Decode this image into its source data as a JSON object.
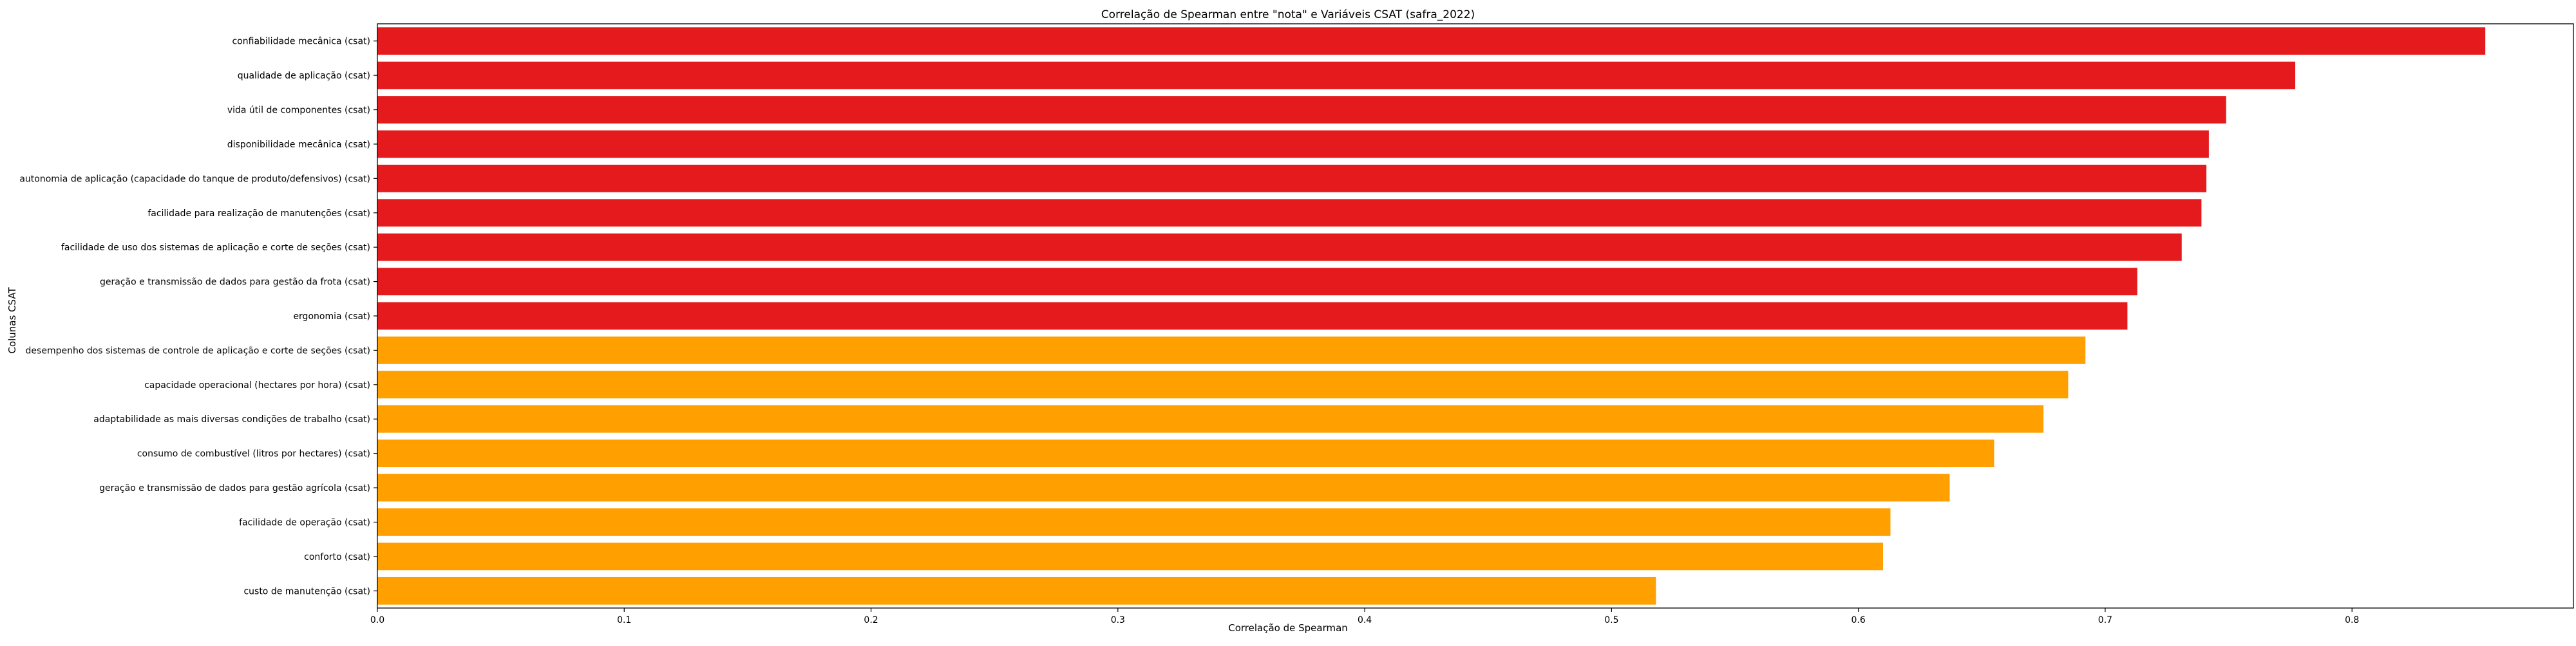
{
  "chart_data": {
    "type": "bar",
    "orientation": "horizontal",
    "title": "Correlação de Spearman entre \"nota\" e Variáveis CSAT (safra_2022)",
    "xlabel": "Correlação de Spearman",
    "ylabel": "Colunas CSAT",
    "xlim": [
      0,
      0.8897
    ],
    "xticks": [
      0.0,
      0.1,
      0.2,
      0.3,
      0.4,
      0.5,
      0.6,
      0.7,
      0.8
    ],
    "xtick_labels": [
      "0.0",
      "0.1",
      "0.2",
      "0.3",
      "0.4",
      "0.5",
      "0.6",
      "0.7",
      "0.8"
    ],
    "grid": false,
    "legend": "none",
    "colors": {
      "high": "#e41a1c",
      "mid": "#ff9f00"
    },
    "categories": [
      "confiabilidade mecânica (csat)",
      "qualidade de aplicação (csat)",
      "vida útil de componentes (csat)",
      "disponibilidade mecânica (csat)",
      "autonomia de aplicação (capacidade do tanque de produto/defensivos) (csat)",
      "facilidade para realização de manutenções (csat)",
      "facilidade de uso dos sistemas de aplicação e corte de seções (csat)",
      "geração e transmissão de dados para gestão da frota (csat)",
      "ergonomia (csat)",
      "desempenho dos sistemas de controle de aplicação e corte de seções (csat)",
      "capacidade operacional (hectares por hora) (csat)",
      "adaptabilidade as mais diversas condições de trabalho (csat)",
      "consumo de combustível (litros por hectares) (csat)",
      "geração e transmissão de dados para gestão agrícola (csat)",
      "facilidade de operação (csat)",
      "conforto (csat)",
      "custo de manutenção (csat)"
    ],
    "values": [
      0.854,
      0.777,
      0.749,
      0.742,
      0.741,
      0.739,
      0.731,
      0.713,
      0.709,
      0.692,
      0.685,
      0.675,
      0.655,
      0.637,
      0.613,
      0.61,
      0.518
    ],
    "color_groups": [
      "high",
      "high",
      "high",
      "high",
      "high",
      "high",
      "high",
      "high",
      "high",
      "mid",
      "mid",
      "mid",
      "mid",
      "mid",
      "mid",
      "mid",
      "mid"
    ]
  }
}
